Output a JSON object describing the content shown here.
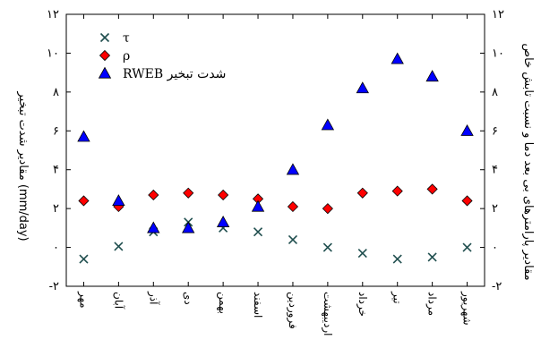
{
  "chart_data": {
    "type": "scatter",
    "categories": [
      "مهر",
      "آبان",
      "آذر",
      "دی",
      "بهمن",
      "اسفند",
      "فروردین",
      "اردیبهشت",
      "خرداد",
      "تیر",
      "مرداد",
      "شهریور"
    ],
    "series": [
      {
        "name": "τ",
        "marker": "x",
        "color": "#1f4e4e",
        "values": [
          -0.6,
          0.05,
          0.8,
          1.3,
          1.0,
          0.8,
          0.4,
          0.0,
          -0.3,
          -0.6,
          -0.5,
          0.0
        ]
      },
      {
        "name": "ρ",
        "marker": "diamond",
        "color": "#ff0000",
        "values": [
          2.4,
          2.1,
          2.7,
          2.8,
          2.7,
          2.5,
          2.1,
          2.0,
          2.8,
          2.9,
          3.0,
          2.4
        ]
      },
      {
        "name": "RWEB شدت تبخیر",
        "marker": "triangle",
        "color": "#0000ff",
        "values": [
          5.7,
          2.4,
          1.0,
          1.0,
          1.3,
          2.1,
          4.0,
          6.3,
          8.2,
          9.7,
          8.8,
          6.0
        ]
      }
    ],
    "ylim": [
      -2,
      12
    ],
    "yticks": [
      "-۲",
      "۰",
      "۲",
      "۴",
      "۶",
      "۸",
      "۱۰",
      "۱۲"
    ],
    "ytick_values": [
      -2,
      0,
      2,
      4,
      6,
      8,
      10,
      12
    ],
    "ylabel_left": "مقادیر شدت تبخیر (mm/day)",
    "ylabel_right": "مقادیر پارامترهای بی بعد دما و نسبت تابش خاص",
    "legend_position": "top-left",
    "grid": false
  }
}
